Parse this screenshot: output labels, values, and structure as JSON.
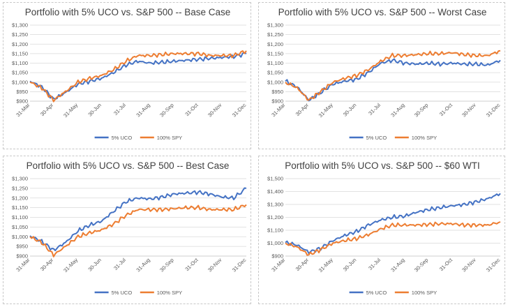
{
  "colors": {
    "uco": "#4472c4",
    "spy": "#ed7d31"
  },
  "chart_data": [
    {
      "type": "line",
      "title": "Portfolio with 5% UCO vs. S&P 500 -- Base Case",
      "x_ticks": [
        "31-Mar",
        "30-Apr",
        "31-May",
        "30-Jun",
        "31-Jul",
        "31-Aug",
        "30-Sep",
        "31-Oct",
        "30-Nov",
        "31-Dec"
      ],
      "y_ticks": [
        "$900",
        "$950",
        "$1,000",
        "$1,050",
        "$1,100",
        "$1,150",
        "$1,200",
        "$1,250",
        "$1,300"
      ],
      "ylim": [
        900,
        1300
      ],
      "legend": "bottom",
      "grid": true,
      "series": [
        {
          "name": "5% UCO",
          "color": "#4472c4",
          "x": [
            "31-Mar",
            "15-Apr",
            "30-Apr",
            "15-May",
            "31-May",
            "15-Jun",
            "30-Jun",
            "15-Jul",
            "31-Jul",
            "15-Aug",
            "31-Aug",
            "15-Sep",
            "30-Sep",
            "15-Oct",
            "31-Oct",
            "15-Nov",
            "30-Nov",
            "15-Dec",
            "31-Dec"
          ],
          "values": [
            1005,
            975,
            910,
            945,
            990,
            1005,
            1020,
            1050,
            1090,
            1110,
            1100,
            1105,
            1110,
            1115,
            1120,
            1125,
            1130,
            1135,
            1150
          ]
        },
        {
          "name": "100% SPY",
          "color": "#ed7d31",
          "x": [
            "31-Mar",
            "15-Apr",
            "30-Apr",
            "15-May",
            "31-May",
            "15-Jun",
            "30-Jun",
            "15-Jul",
            "31-Jul",
            "15-Aug",
            "31-Aug",
            "15-Sep",
            "30-Sep",
            "15-Oct",
            "31-Oct",
            "15-Nov",
            "30-Nov",
            "15-Dec",
            "31-Dec"
          ],
          "values": [
            1000,
            970,
            905,
            950,
            1000,
            1020,
            1035,
            1065,
            1110,
            1140,
            1140,
            1145,
            1150,
            1150,
            1150,
            1140,
            1140,
            1140,
            1165
          ]
        }
      ]
    },
    {
      "type": "line",
      "title": "Portfolio with 5% UCO vs. S&P 500 -- Worst Case",
      "x_ticks": [
        "31-Mar",
        "30-Apr",
        "31-May",
        "30-Jun",
        "31-Jul",
        "31-Aug",
        "30-Sep",
        "31-Oct",
        "30-Nov",
        "31-Dec"
      ],
      "y_ticks": [
        "$900",
        "$950",
        "$1,000",
        "$1,050",
        "$1,100",
        "$1,150",
        "$1,200",
        "$1,250",
        "$1,300"
      ],
      "ylim": [
        900,
        1300
      ],
      "legend": "bottom",
      "grid": true,
      "series": [
        {
          "name": "5% UCO",
          "color": "#4472c4",
          "x": [
            "31-Mar",
            "15-Apr",
            "30-Apr",
            "15-May",
            "31-May",
            "15-Jun",
            "30-Jun",
            "15-Jul",
            "31-Jul",
            "15-Aug",
            "31-Aug",
            "15-Sep",
            "30-Sep",
            "15-Oct",
            "31-Oct",
            "15-Nov",
            "30-Nov",
            "15-Dec",
            "31-Dec"
          ],
          "values": [
            1005,
            975,
            905,
            945,
            990,
            1005,
            1015,
            1050,
            1100,
            1115,
            1100,
            1095,
            1100,
            1095,
            1100,
            1095,
            1095,
            1090,
            1115
          ]
        },
        {
          "name": "100% SPY",
          "color": "#ed7d31",
          "x": [
            "31-Mar",
            "15-Apr",
            "30-Apr",
            "15-May",
            "31-May",
            "15-Jun",
            "30-Jun",
            "15-Jul",
            "31-Jul",
            "15-Aug",
            "31-Aug",
            "15-Sep",
            "30-Sep",
            "15-Oct",
            "31-Oct",
            "15-Nov",
            "30-Nov",
            "15-Dec",
            "31-Dec"
          ],
          "values": [
            1000,
            970,
            905,
            950,
            1000,
            1020,
            1035,
            1065,
            1110,
            1140,
            1140,
            1145,
            1150,
            1150,
            1155,
            1145,
            1140,
            1140,
            1165
          ]
        }
      ]
    },
    {
      "type": "line",
      "title": "Portfolio with 5% UCO vs. S&P 500 -- Best Case",
      "x_ticks": [
        "31-Mar",
        "30-Apr",
        "31-May",
        "30-Jun",
        "31-Jul",
        "31-Aug",
        "30-Sep",
        "31-Oct",
        "30-Nov",
        "31-Dec"
      ],
      "y_ticks": [
        "$900",
        "$950",
        "$1,000",
        "$1,050",
        "$1,100",
        "$1,150",
        "$1,200",
        "$1,250",
        "$1,300"
      ],
      "ylim": [
        900,
        1300
      ],
      "legend": "bottom",
      "grid": true,
      "series": [
        {
          "name": "5% UCO",
          "color": "#4472c4",
          "x": [
            "31-Mar",
            "15-Apr",
            "30-Apr",
            "15-May",
            "31-May",
            "15-Jun",
            "30-Jun",
            "15-Jul",
            "31-Jul",
            "15-Aug",
            "31-Aug",
            "15-Sep",
            "30-Sep",
            "15-Oct",
            "31-Oct",
            "15-Nov",
            "30-Nov",
            "15-Dec",
            "31-Dec"
          ],
          "values": [
            1005,
            975,
            930,
            970,
            1030,
            1060,
            1080,
            1130,
            1180,
            1200,
            1195,
            1205,
            1220,
            1225,
            1230,
            1220,
            1205,
            1200,
            1250
          ]
        },
        {
          "name": "100% SPY",
          "color": "#ed7d31",
          "x": [
            "31-Mar",
            "15-Apr",
            "30-Apr",
            "15-May",
            "31-May",
            "15-Jun",
            "30-Jun",
            "15-Jul",
            "31-Jul",
            "15-Aug",
            "31-Aug",
            "15-Sep",
            "30-Sep",
            "15-Oct",
            "31-Oct",
            "15-Nov",
            "30-Nov",
            "15-Dec",
            "31-Dec"
          ],
          "values": [
            1000,
            970,
            905,
            950,
            1000,
            1020,
            1035,
            1065,
            1110,
            1140,
            1140,
            1140,
            1145,
            1150,
            1150,
            1140,
            1140,
            1140,
            1165
          ]
        }
      ]
    },
    {
      "type": "line",
      "title": "Portfolio with 5% UCO vs. S&P 500 -- $60 WTI",
      "x_ticks": [
        "31-Mar",
        "30-Apr",
        "31-May",
        "30-Jun",
        "31-Jul",
        "31-Aug",
        "30-Sep",
        "31-Oct",
        "30-Nov",
        "31-Dec"
      ],
      "y_ticks": [
        "$900",
        "$1,000",
        "$1,100",
        "$1,200",
        "$1,300",
        "$1,400",
        "$1,500"
      ],
      "ylim": [
        900,
        1500
      ],
      "legend": "bottom",
      "grid": true,
      "series": [
        {
          "name": "5% UCO",
          "color": "#4472c4",
          "x": [
            "31-Mar",
            "15-Apr",
            "30-Apr",
            "15-May",
            "31-May",
            "15-Jun",
            "30-Jun",
            "15-Jul",
            "31-Jul",
            "15-Aug",
            "31-Aug",
            "15-Sep",
            "30-Sep",
            "15-Oct",
            "31-Oct",
            "15-Nov",
            "30-Nov",
            "15-Dec",
            "31-Dec"
          ],
          "values": [
            1005,
            985,
            930,
            960,
            1020,
            1060,
            1090,
            1140,
            1180,
            1200,
            1210,
            1240,
            1260,
            1275,
            1290,
            1300,
            1320,
            1345,
            1385
          ]
        },
        {
          "name": "100% SPY",
          "color": "#ed7d31",
          "x": [
            "31-Mar",
            "15-Apr",
            "30-Apr",
            "15-May",
            "31-May",
            "15-Jun",
            "30-Jun",
            "15-Jul",
            "31-Jul",
            "15-Aug",
            "31-Aug",
            "15-Sep",
            "30-Sep",
            "15-Oct",
            "31-Oct",
            "15-Nov",
            "30-Nov",
            "15-Dec",
            "31-Dec"
          ],
          "values": [
            1000,
            970,
            910,
            950,
            1000,
            1020,
            1035,
            1065,
            1110,
            1140,
            1140,
            1140,
            1145,
            1150,
            1150,
            1140,
            1140,
            1140,
            1165
          ]
        }
      ]
    }
  ]
}
